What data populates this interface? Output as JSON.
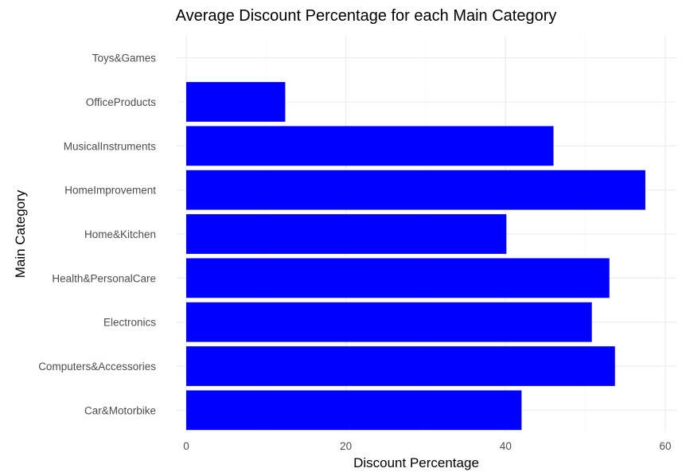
{
  "chart_data": {
    "type": "bar",
    "orientation": "horizontal",
    "title": "Average Discount Percentage for each Main Category",
    "xlabel": "Discount Percentage",
    "ylabel": "Main Category",
    "categories": [
      "Car&Motorbike",
      "Computers&Accessories",
      "Electronics",
      "Health&PersonalCare",
      "Home&Kitchen",
      "HomeImprovement",
      "MusicalInstruments",
      "OfficeProducts",
      "Toys&Games"
    ],
    "values": [
      42,
      53.7,
      50.8,
      53,
      40.1,
      57.5,
      46,
      12.4,
      0
    ],
    "xlim": [
      0,
      60
    ],
    "x_ticks": [
      0,
      20,
      40,
      60
    ],
    "x_tick_labels": [
      "0",
      "20",
      "40",
      "60"
    ],
    "bar_color": "#0000FF",
    "grid": true,
    "legend": "none"
  }
}
